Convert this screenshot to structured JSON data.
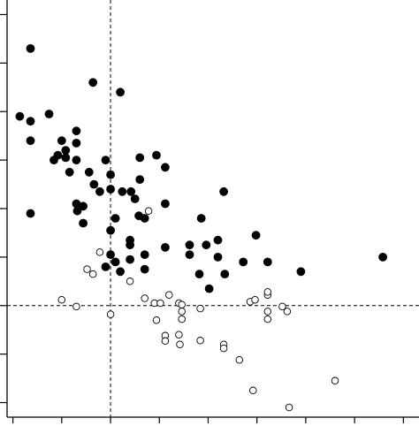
{
  "chart_data": {
    "type": "scatter",
    "title": "",
    "xlabel": "",
    "ylabel": "",
    "xlim": [
      -10.6,
      31.6
    ],
    "ylim": [
      -2.3,
      6.3
    ],
    "grid": false,
    "reference_lines": {
      "x": 0,
      "y": 0
    },
    "x_ticks": [
      -10,
      -5,
      0,
      5,
      10,
      15,
      20,
      25,
      30
    ],
    "y_ticks": [
      -2,
      -1,
      0,
      1,
      2,
      3,
      4,
      5,
      6
    ],
    "colors": {
      "filled": "#000000",
      "open": "#ffffff",
      "outline": "#000000"
    },
    "series": [
      {
        "marker": "filled-circle",
        "points": [
          [
            -8.2,
            5.3
          ],
          [
            -9.3,
            3.9
          ],
          [
            -8.2,
            3.8
          ],
          [
            -8.2,
            3.4
          ],
          [
            -6.3,
            3.95
          ],
          [
            -1.8,
            4.6
          ],
          [
            1.0,
            4.4
          ],
          [
            -5.8,
            3.0
          ],
          [
            -5.0,
            3.4
          ],
          [
            -3.5,
            3.6
          ],
          [
            -3.5,
            3.35
          ],
          [
            -4.6,
            3.2
          ],
          [
            -4.6,
            3.05
          ],
          [
            -5.4,
            3.1
          ],
          [
            -3.5,
            3.0
          ],
          [
            -4.2,
            2.75
          ],
          [
            -2.2,
            2.75
          ],
          [
            -0.5,
            3.0
          ],
          [
            3.0,
            3.05
          ],
          [
            4.7,
            3.1
          ],
          [
            5.6,
            2.85
          ],
          [
            -8.2,
            1.9
          ],
          [
            -1.7,
            2.5
          ],
          [
            -1.1,
            2.35
          ],
          [
            0.0,
            2.7
          ],
          [
            0.0,
            2.4
          ],
          [
            1.2,
            2.35
          ],
          [
            2.1,
            2.35
          ],
          [
            3.0,
            2.6
          ],
          [
            2.5,
            2.2
          ],
          [
            5.6,
            2.1
          ],
          [
            -3.5,
            2.1
          ],
          [
            -2.8,
            2.05
          ],
          [
            -3.4,
            1.95
          ],
          [
            0.5,
            1.8
          ],
          [
            2.9,
            1.85
          ],
          [
            3.5,
            1.8
          ],
          [
            9.3,
            1.8
          ],
          [
            11.6,
            2.35
          ],
          [
            -2.8,
            1.7
          ],
          [
            0.0,
            1.55
          ],
          [
            2.0,
            1.35
          ],
          [
            2.0,
            1.25
          ],
          [
            5.6,
            1.2
          ],
          [
            8.1,
            1.25
          ],
          [
            8.1,
            1.05
          ],
          [
            9.8,
            1.25
          ],
          [
            11.0,
            1.35
          ],
          [
            14.9,
            1.45
          ],
          [
            3.5,
            1.05
          ],
          [
            2.0,
            0.95
          ],
          [
            0.0,
            1.05
          ],
          [
            0.5,
            0.9
          ],
          [
            -0.5,
            0.8
          ],
          [
            1.0,
            0.7
          ],
          [
            3.5,
            0.75
          ],
          [
            9.1,
            0.65
          ],
          [
            10.1,
            0.35
          ],
          [
            11.0,
            1.0
          ],
          [
            11.7,
            0.65
          ],
          [
            13.6,
            0.9
          ],
          [
            16.1,
            0.9
          ],
          [
            19.5,
            0.7
          ],
          [
            27.9,
            1.0
          ]
        ]
      },
      {
        "marker": "open-circle",
        "points": [
          [
            3.9,
            1.95
          ],
          [
            -1.1,
            1.1
          ],
          [
            -2.4,
            0.75
          ],
          [
            -1.8,
            0.65
          ],
          [
            2.0,
            0.5
          ],
          [
            -5.0,
            0.12
          ],
          [
            -3.5,
            -0.02
          ],
          [
            0.0,
            -0.18
          ],
          [
            3.5,
            0.15
          ],
          [
            4.5,
            0.05
          ],
          [
            5.1,
            0.05
          ],
          [
            6.0,
            0.22
          ],
          [
            7.0,
            0.05
          ],
          [
            7.3,
            0.02
          ],
          [
            7.3,
            -0.12
          ],
          [
            7.3,
            -0.28
          ],
          [
            4.7,
            -0.3
          ],
          [
            9.2,
            -0.06
          ],
          [
            14.3,
            0.08
          ],
          [
            14.8,
            0.12
          ],
          [
            16.1,
            0.22
          ],
          [
            16.1,
            0.28
          ],
          [
            16.1,
            -0.12
          ],
          [
            16.1,
            -0.28
          ],
          [
            17.6,
            -0.02
          ],
          [
            18.1,
            -0.12
          ],
          [
            5.6,
            -0.62
          ],
          [
            5.6,
            -0.73
          ],
          [
            7.0,
            -0.6
          ],
          [
            7.1,
            -0.8
          ],
          [
            9.2,
            -0.72
          ],
          [
            11.6,
            -0.8
          ],
          [
            11.6,
            -0.88
          ],
          [
            13.2,
            -1.12
          ],
          [
            14.6,
            -1.75
          ],
          [
            23.0,
            -1.55
          ],
          [
            18.3,
            -2.1
          ]
        ]
      }
    ]
  }
}
